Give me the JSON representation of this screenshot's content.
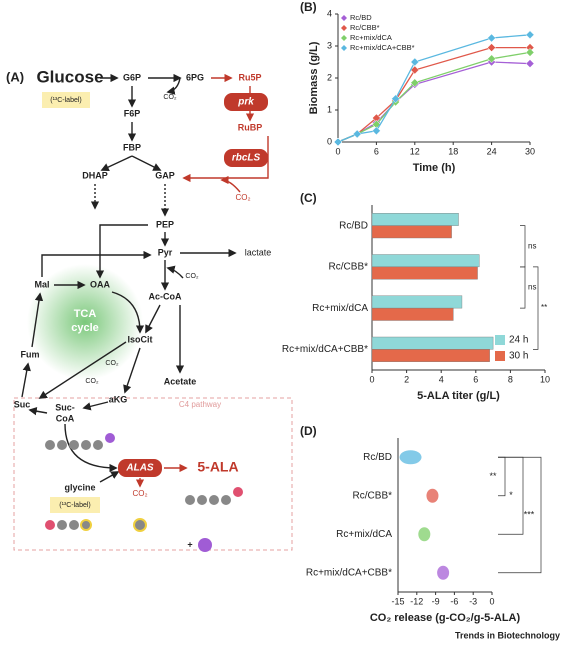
{
  "diagram": {
    "label": "(A)",
    "nodes": [
      "Glucose",
      "(¹³C-label)",
      "G6P",
      "6PG",
      "Ru5P",
      "CO₂",
      "prk",
      "RuBP",
      "rbcLS",
      "F6P",
      "FBP",
      "DHAP",
      "GAP",
      "CO₂",
      "PEP",
      "Pyr",
      "lactate",
      "Mal",
      "OAA",
      "CO₂",
      "Ac-CoA",
      "TCA",
      "cycle",
      "Fum",
      "IsoCit",
      "CO₂",
      "Acetate",
      "Suc",
      "aKG",
      "CO₂",
      "Suc-",
      "CoA",
      "C4 pathway",
      "glycine",
      "ALAS",
      "5-ALA",
      "(¹³C-label)",
      "CO₂",
      "+"
    ]
  },
  "chart_data": [
    {
      "type": "line",
      "label": "(B)",
      "xlabel": "Time (h)",
      "ylabel": "Biomass (g/L)",
      "x": [
        0,
        3,
        6,
        9,
        12,
        24,
        30
      ],
      "xlim": [
        0,
        30
      ],
      "xticks": [
        0,
        6,
        12,
        18,
        24,
        30
      ],
      "ylim": [
        0,
        4
      ],
      "yticks": [
        0,
        1,
        2,
        3,
        4
      ],
      "grid": false,
      "legend": "upper left",
      "series": [
        {
          "name": "Rc/BD",
          "color": "#a55fd6",
          "values": [
            0,
            0.25,
            0.6,
            1.25,
            1.8,
            2.5,
            2.45
          ]
        },
        {
          "name": "Rc/CBB*",
          "color": "#e0584a",
          "values": [
            0,
            0.25,
            0.75,
            1.3,
            2.25,
            2.95,
            2.95
          ]
        },
        {
          "name": "Rc+mix/dCA",
          "color": "#7fcf6a",
          "values": [
            0,
            0.25,
            0.55,
            1.25,
            1.85,
            2.6,
            2.8
          ]
        },
        {
          "name": "Rc+mix/dCA+CBB*",
          "color": "#5ab8e0",
          "values": [
            0,
            0.25,
            0.35,
            1.35,
            2.5,
            3.25,
            3.35
          ]
        }
      ]
    },
    {
      "type": "bar",
      "orientation": "horizontal",
      "label": "(C)",
      "xlabel": "5-ALA titer (g/L)",
      "categories": [
        "Rc/BD",
        "Rc/CBB*",
        "Rc+mix/dCA",
        "Rc+mix/dCA+CBB*"
      ],
      "xlim": [
        0,
        10
      ],
      "xticks": [
        0,
        2,
        4,
        6,
        8,
        10
      ],
      "legend": "lower right",
      "series": [
        {
          "name": "24 h",
          "color": "#8fd8d8",
          "values": [
            5.0,
            6.2,
            5.2,
            7.0
          ]
        },
        {
          "name": "30 h",
          "color": "#e4694a",
          "values": [
            4.6,
            6.1,
            4.7,
            6.8
          ]
        }
      ],
      "annotations": [
        "ns",
        "ns",
        "**"
      ]
    },
    {
      "type": "violin",
      "label": "(D)",
      "xlabel": "CO₂ release (g-CO₂/g-5-ALA)",
      "categories": [
        "Rc/BD",
        "Rc/CBB*",
        "Rc+mix/dCA",
        "Rc+mix/dCA+CBB*"
      ],
      "xlim": [
        -15,
        0
      ],
      "xticks": [
        -15,
        -12,
        -9,
        -6,
        -3,
        0
      ],
      "colors": [
        "#5ab8e0",
        "#e0584a",
        "#7fcf6a",
        "#a55fd6"
      ],
      "values": [
        -13,
        -9.5,
        -10.8,
        -7.8
      ],
      "annotations": [
        "**",
        "*",
        "***"
      ]
    }
  ],
  "footer": "Trends in Biotechnology"
}
